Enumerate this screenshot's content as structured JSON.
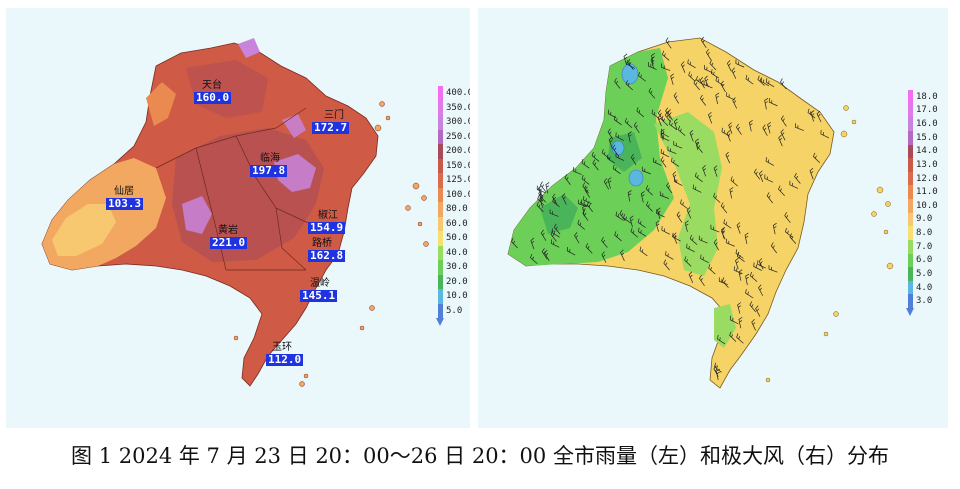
{
  "caption": "图 1  2024 年 7 月 23 日 20：00～26 日 20：00 全市雨量（左）和极大风（右）分布",
  "rain_map": {
    "stations": [
      {
        "name": "天台",
        "value": "160.0"
      },
      {
        "name": "三门",
        "value": "172.7"
      },
      {
        "name": "临海",
        "value": "197.8"
      },
      {
        "name": "仙居",
        "value": "103.3"
      },
      {
        "name": "椒江",
        "value": "154.9"
      },
      {
        "name": "黄岩",
        "value": "221.0"
      },
      {
        "name": "路桥",
        "value": "162.8"
      },
      {
        "name": "温岭",
        "value": "145.1"
      },
      {
        "name": "玉环",
        "value": "112.0"
      }
    ],
    "legend": {
      "labels": [
        "400.0",
        "350.0",
        "300.0",
        "250.0",
        "200.0",
        "150.0",
        "125.0",
        "100.0",
        "80.0",
        "60.0",
        "50.0",
        "40.0",
        "30.0",
        "20.0",
        "10.0",
        "5.0"
      ],
      "colors": [
        "#f26ff2",
        "#e07ae8",
        "#c884dc",
        "#b46ac0",
        "#a84a5a",
        "#c95a4a",
        "#dc6a4c",
        "#ea8a50",
        "#f2a860",
        "#f7c870",
        "#f5e070",
        "#9adb62",
        "#6ccf58",
        "#4ab45a",
        "#5ab8e0",
        "#4f7fd8"
      ]
    }
  },
  "wind_map": {
    "legend": {
      "labels": [
        "18.0",
        "17.0",
        "16.0",
        "15.0",
        "14.0",
        "13.0",
        "12.0",
        "11.0",
        "10.0",
        "9.0",
        "8.0",
        "7.0",
        "6.0",
        "5.0",
        "4.0",
        "3.0"
      ],
      "colors": [
        "#f26ff2",
        "#e07ae8",
        "#c884dc",
        "#b46ac0",
        "#a84a5a",
        "#c95a4a",
        "#dc6a4c",
        "#ea8a50",
        "#f2a860",
        "#f7c870",
        "#f5e070",
        "#9adb62",
        "#6ccf58",
        "#4ab45a",
        "#5ab8e0",
        "#4f7fd8"
      ]
    }
  }
}
